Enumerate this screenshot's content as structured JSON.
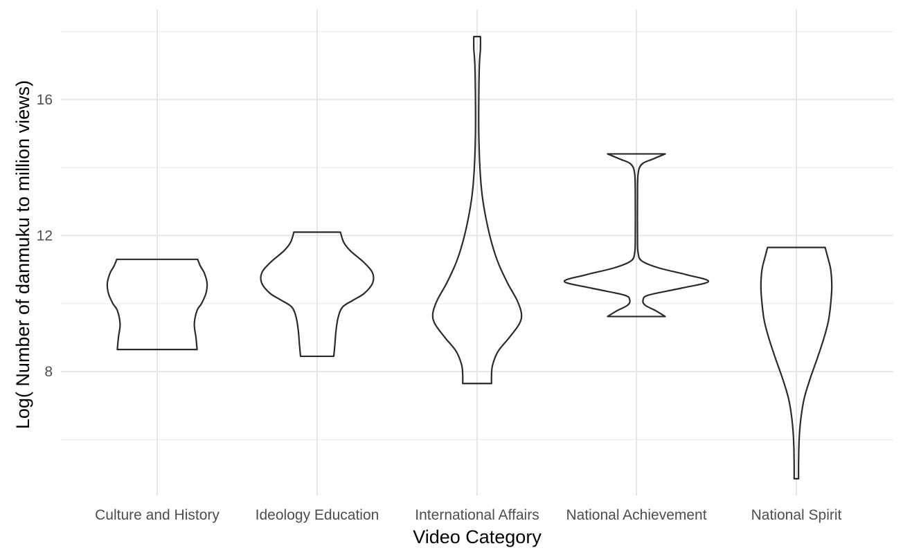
{
  "chart_data": {
    "type": "violin",
    "title": "",
    "xlabel": "Video Category",
    "ylabel": "Log( Number of danmuku to million views)",
    "ylim": [
      4.36,
      18.64
    ],
    "yticks": [
      8,
      12,
      16
    ],
    "y_minor_ticks": [
      6,
      10,
      14,
      18
    ],
    "grid": true,
    "legend": "none",
    "line_color": "#2a2a2a",
    "categories": [
      "Culture and History",
      "Ideology Education",
      "International Affairs",
      "National Achievement",
      "National Spirit"
    ],
    "series": [
      {
        "category": "Culture and History",
        "min": 8.65,
        "max": 11.3,
        "density_profile": [
          [
            8.65,
            0.72
          ],
          [
            9.0,
            0.7
          ],
          [
            9.4,
            0.67
          ],
          [
            9.8,
            0.72
          ],
          [
            10.0,
            0.8
          ],
          [
            10.3,
            0.88
          ],
          [
            10.6,
            0.9
          ],
          [
            10.9,
            0.85
          ],
          [
            11.1,
            0.78
          ],
          [
            11.3,
            0.73
          ]
        ]
      },
      {
        "category": "Ideology Education",
        "min": 8.45,
        "max": 12.1,
        "density_profile": [
          [
            8.45,
            0.3
          ],
          [
            8.8,
            0.32
          ],
          [
            9.2,
            0.34
          ],
          [
            9.6,
            0.38
          ],
          [
            9.9,
            0.46
          ],
          [
            10.1,
            0.65
          ],
          [
            10.3,
            0.85
          ],
          [
            10.6,
            1.0
          ],
          [
            10.9,
            1.0
          ],
          [
            11.2,
            0.85
          ],
          [
            11.55,
            0.6
          ],
          [
            11.8,
            0.48
          ],
          [
            12.1,
            0.42
          ]
        ]
      },
      {
        "category": "International Affairs",
        "min": 7.65,
        "max": 17.85,
        "density_profile": [
          [
            7.65,
            0.26
          ],
          [
            7.9,
            0.26
          ],
          [
            8.2,
            0.28
          ],
          [
            8.6,
            0.38
          ],
          [
            9.0,
            0.58
          ],
          [
            9.4,
            0.76
          ],
          [
            9.7,
            0.8
          ],
          [
            10.1,
            0.72
          ],
          [
            10.6,
            0.55
          ],
          [
            11.2,
            0.38
          ],
          [
            11.8,
            0.26
          ],
          [
            12.5,
            0.16
          ],
          [
            13.2,
            0.09
          ],
          [
            14.0,
            0.05
          ],
          [
            15.0,
            0.03
          ],
          [
            16.0,
            0.03
          ],
          [
            17.0,
            0.04
          ],
          [
            17.5,
            0.06
          ],
          [
            17.85,
            0.06
          ]
        ]
      },
      {
        "category": "National Achievement",
        "min": 9.62,
        "max": 14.4,
        "density_profile": [
          [
            9.62,
            0.52
          ],
          [
            9.78,
            0.36
          ],
          [
            9.95,
            0.16
          ],
          [
            10.1,
            0.12
          ],
          [
            10.25,
            0.22
          ],
          [
            10.45,
            0.8
          ],
          [
            10.65,
            1.3
          ],
          [
            10.85,
            0.9
          ],
          [
            11.05,
            0.4
          ],
          [
            11.25,
            0.1
          ],
          [
            11.5,
            0.03
          ],
          [
            12.0,
            0.02
          ],
          [
            13.0,
            0.02
          ],
          [
            13.8,
            0.03
          ],
          [
            14.1,
            0.1
          ],
          [
            14.25,
            0.3
          ],
          [
            14.4,
            0.52
          ]
        ]
      },
      {
        "category": "National Spirit",
        "min": 4.85,
        "max": 11.65,
        "density_profile": [
          [
            4.85,
            0.04
          ],
          [
            5.3,
            0.04
          ],
          [
            6.0,
            0.05
          ],
          [
            6.6,
            0.08
          ],
          [
            7.2,
            0.14
          ],
          [
            7.8,
            0.25
          ],
          [
            8.4,
            0.38
          ],
          [
            9.0,
            0.5
          ],
          [
            9.5,
            0.58
          ],
          [
            10.0,
            0.62
          ],
          [
            10.5,
            0.64
          ],
          [
            11.0,
            0.62
          ],
          [
            11.4,
            0.56
          ],
          [
            11.65,
            0.52
          ]
        ]
      }
    ]
  }
}
